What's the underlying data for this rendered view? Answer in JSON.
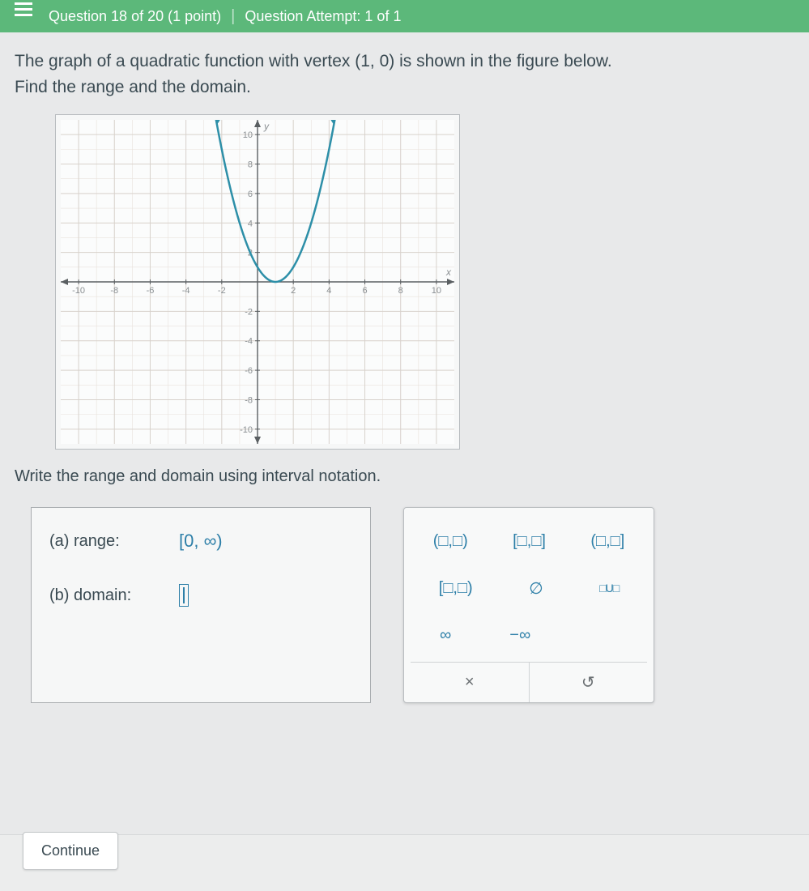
{
  "header": {
    "question_of": "Question 18 of 20 (1 point)",
    "attempt": "Question Attempt: 1 of 1"
  },
  "prompt": {
    "line1_a": "The graph of a quadratic function with vertex ",
    "vertex": "(1, 0)",
    "line1_b": " is shown in the figure below.",
    "line2": "Find the range and the domain."
  },
  "chart": {
    "type": "line",
    "xlim": [
      -11,
      11
    ],
    "ylim": [
      -11,
      11
    ],
    "xticks": [
      -10,
      -8,
      -6,
      -4,
      -2,
      2,
      4,
      6,
      8,
      10
    ],
    "yticks": [
      -10,
      -8,
      -6,
      -4,
      -2,
      2,
      4,
      6,
      8,
      10
    ],
    "grid_major_step": 2,
    "grid_minor_step": 1,
    "background_color": "#fbfcfc",
    "grid_minor_color": "#e9e2dc",
    "grid_major_color": "#d8d2cc",
    "axis_color": "#5a5f62",
    "tick_label_color": "#8a8f92",
    "tick_fontsize": 11,
    "curve_color": "#2d8fa8",
    "curve_width": 2.5,
    "vertex": [
      1,
      0
    ],
    "a": 1.0,
    "x_axis_label": "x",
    "y_axis_label": "y"
  },
  "instruction": "Write the range and domain using interval notation.",
  "answers": {
    "a_label": "(a)  range:",
    "a_value": "[0, ∞)",
    "b_label": "(b)  domain:"
  },
  "palette": {
    "row1": [
      "(□,□)",
      "[□,□]",
      "(□,□]"
    ],
    "row2": [
      "[□,□)",
      "∅",
      "□U□"
    ],
    "row3": [
      "∞",
      "−∞"
    ],
    "clear": "×",
    "reset": "↺"
  },
  "continue_label": "Continue"
}
